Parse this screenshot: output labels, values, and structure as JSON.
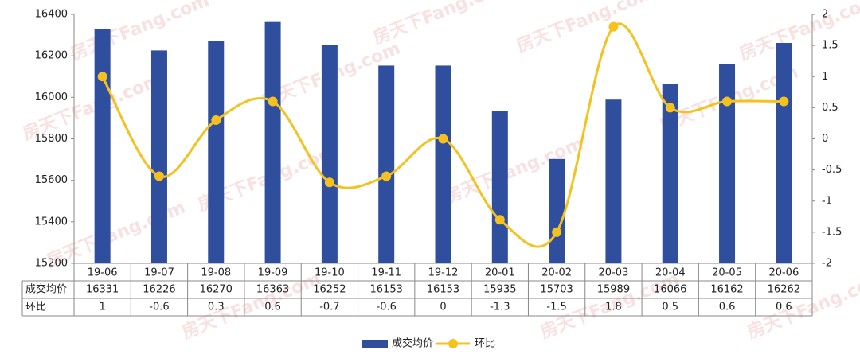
{
  "chart_data": {
    "type": "bar",
    "watermark": "房天下Fang.com",
    "categories": [
      "19-06",
      "19-07",
      "19-08",
      "19-09",
      "19-10",
      "19-11",
      "19-12",
      "20-01",
      "20-02",
      "20-03",
      "20-04",
      "20-05",
      "20-06"
    ],
    "series": [
      {
        "name": "成交均价",
        "type": "bar",
        "color": "#2f4f9e",
        "values": [
          16331,
          16226,
          16270,
          16363,
          16252,
          16153,
          16153,
          15935,
          15703,
          15989,
          16066,
          16162,
          16262
        ]
      },
      {
        "name": "环比",
        "type": "line",
        "axis": "y2",
        "color": "#f5c11f",
        "values": [
          1,
          -0.6,
          0.3,
          0.6,
          -0.7,
          -0.6,
          0,
          -1.3,
          -1.5,
          1.8,
          0.5,
          0.6,
          0.6
        ]
      }
    ],
    "ylim": [
      15200,
      16400
    ],
    "yticks": [
      15200,
      15400,
      15600,
      15800,
      16000,
      16200,
      16400
    ],
    "y2lim": [
      -2,
      2
    ],
    "y2ticks": [
      -2,
      -1.5,
      -1,
      -0.5,
      0,
      0.5,
      1,
      1.5,
      2
    ],
    "legend": "bottom"
  }
}
